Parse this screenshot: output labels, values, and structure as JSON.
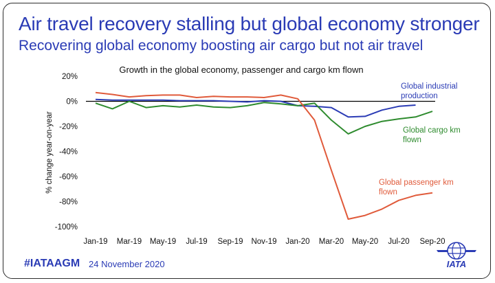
{
  "slide": {
    "title": "Air travel recovery stalling but global economy stronger",
    "subtitle": "Recovering global economy boosting air cargo but not air travel",
    "footer_hashtag": "#IATAAGM",
    "footer_date": "24 November 2020",
    "logo_text": "IATA"
  },
  "chart_data": {
    "type": "line",
    "title": "Growth in the global economy, passenger and cargo km flown",
    "ylabel": "% change year-on-year",
    "ylim": [
      -100,
      20
    ],
    "yticks": [
      20,
      0,
      -20,
      -40,
      -60,
      -80,
      -100
    ],
    "ytick_labels": [
      "20%",
      "0%",
      "-20%",
      "-40%",
      "-60%",
      "-80%",
      "-100%"
    ],
    "xlabels": [
      "Jan-19",
      "Mar-19",
      "May-19",
      "Jul-19",
      "Sep-19",
      "Nov-19",
      "Jan-20",
      "Mar-20",
      "May-20",
      "Jul-20",
      "Sep-20"
    ],
    "x": [
      "Jan-19",
      "Feb-19",
      "Mar-19",
      "Apr-19",
      "May-19",
      "Jun-19",
      "Jul-19",
      "Aug-19",
      "Sep-19",
      "Oct-19",
      "Nov-19",
      "Dec-19",
      "Jan-20",
      "Feb-20",
      "Mar-20",
      "Apr-20",
      "May-20",
      "Jun-20",
      "Jul-20",
      "Aug-20",
      "Sep-20"
    ],
    "grid": false,
    "series": [
      {
        "name": "Global industrial production",
        "label": "Global industrial production",
        "label_lines": [
          "Global industrial",
          "production"
        ],
        "color": "#2a3bb5",
        "values": [
          1.5,
          1.0,
          1.0,
          1.0,
          1.0,
          0.5,
          0.5,
          0.5,
          0.0,
          -0.5,
          0.5,
          0.0,
          -3.5,
          -4.0,
          -5.0,
          -12.5,
          -12.0,
          -7.0,
          -4.0,
          -3.0,
          null
        ]
      },
      {
        "name": "Global cargo km flown",
        "label": "Global cargo km flown",
        "label_lines": [
          "Global cargo km",
          "flown"
        ],
        "color": "#2e8b2e",
        "values": [
          -1.5,
          -6.0,
          0.0,
          -5.0,
          -3.5,
          -4.5,
          -3.0,
          -4.5,
          -5.0,
          -3.5,
          -1.0,
          -2.0,
          -3.5,
          -1.5,
          -15.0,
          -26.0,
          -20.0,
          -16.0,
          -14.0,
          -12.5,
          -8.0
        ]
      },
      {
        "name": "Global passenger km flown",
        "label": "Global passenger km flown",
        "label_lines": [
          "Global passenger km",
          "flown"
        ],
        "color": "#e05a3a",
        "values": [
          7.0,
          5.5,
          3.5,
          4.5,
          5.0,
          5.0,
          3.0,
          4.0,
          3.5,
          3.5,
          3.0,
          5.0,
          2.0,
          -15.0,
          -55.0,
          -94.0,
          -91.0,
          -86.0,
          -79.0,
          -75.0,
          -73.0
        ]
      }
    ]
  }
}
